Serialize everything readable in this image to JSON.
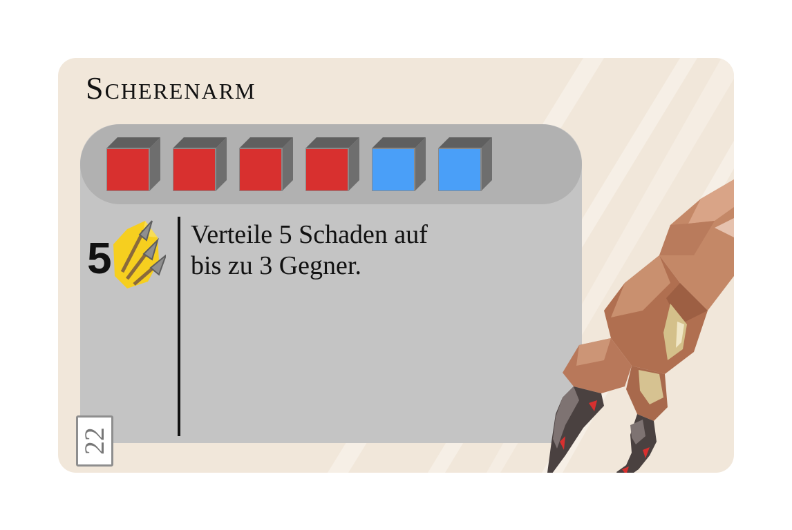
{
  "card": {
    "title": "Scherenarm",
    "number": "22",
    "ability": {
      "value": "5",
      "icon": "triple-arrow-damage-icon",
      "text_line1": "Verteile 5 Schaden auf",
      "text_line2": "bis zu 3 Gegner."
    },
    "cost_cubes": [
      {
        "color": "red",
        "hex": "#d8302f"
      },
      {
        "color": "red",
        "hex": "#d8302f"
      },
      {
        "color": "red",
        "hex": "#d8302f"
      },
      {
        "color": "red",
        "hex": "#d8302f"
      },
      {
        "color": "blue",
        "hex": "#4a9ff8"
      },
      {
        "color": "blue",
        "hex": "#4a9ff8"
      }
    ],
    "art": "claw-arm-illustration",
    "colors": {
      "card_background": "#f1e7da",
      "panel": "#c4c4c4",
      "cost_bar": "#b1b1b1",
      "coin": "#f6cf1f"
    }
  }
}
